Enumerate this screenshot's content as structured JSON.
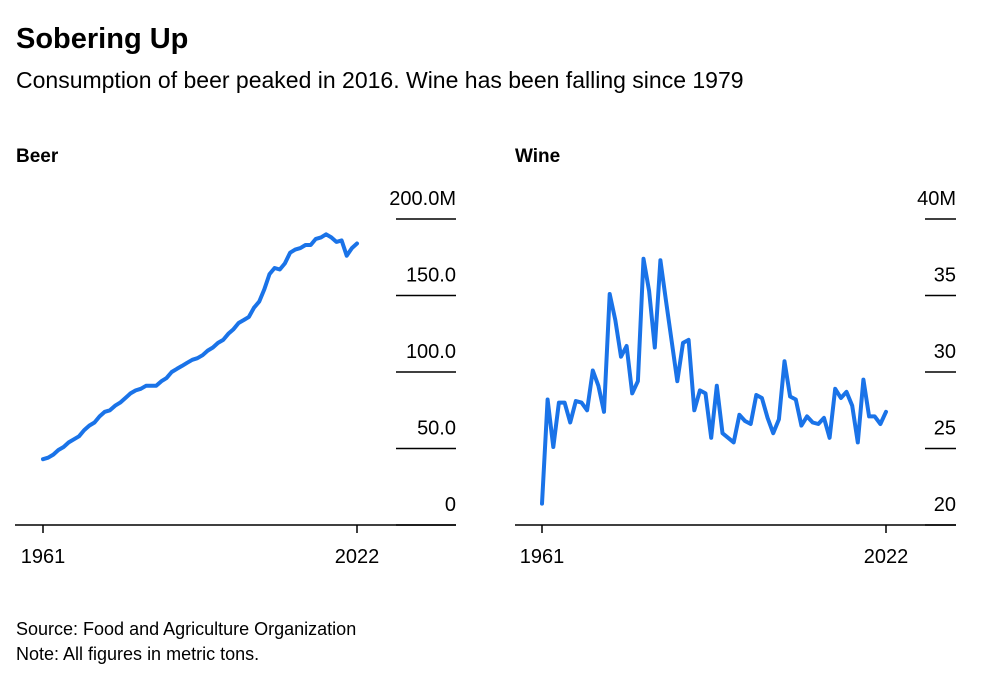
{
  "title": "Sobering Up",
  "subtitle": "Consumption of beer peaked in 2016. Wine has been falling since 1979",
  "chart_data": [
    {
      "type": "line",
      "title": "Beer",
      "color": "#1a73e8",
      "x": [
        1961,
        1962,
        1963,
        1964,
        1965,
        1966,
        1967,
        1968,
        1969,
        1970,
        1971,
        1972,
        1973,
        1974,
        1975,
        1976,
        1977,
        1978,
        1979,
        1980,
        1981,
        1982,
        1983,
        1984,
        1985,
        1986,
        1987,
        1988,
        1989,
        1990,
        1991,
        1992,
        1993,
        1994,
        1995,
        1996,
        1997,
        1998,
        1999,
        2000,
        2001,
        2002,
        2003,
        2004,
        2005,
        2006,
        2007,
        2008,
        2009,
        2010,
        2011,
        2012,
        2013,
        2014,
        2015,
        2016,
        2017,
        2018,
        2019,
        2020,
        2021,
        2022
      ],
      "values": [
        43,
        44,
        46,
        49,
        51,
        54,
        56,
        58,
        62,
        65,
        67,
        71,
        74,
        75,
        78,
        80,
        83,
        86,
        88,
        89,
        91,
        91,
        91,
        94,
        96,
        100,
        102,
        104,
        106,
        108,
        109,
        111,
        114,
        116,
        119,
        121,
        125,
        128,
        132,
        134,
        136,
        142,
        146,
        154,
        164,
        168,
        167,
        171,
        178,
        180,
        181,
        183,
        183,
        187,
        188,
        190,
        188,
        185,
        186,
        176,
        181,
        184
      ],
      "xlim": [
        1961,
        2022
      ],
      "xticks": [
        1961,
        2022
      ],
      "ylim": [
        0,
        200
      ],
      "yticks": [
        0,
        {
          "value": 50,
          "label": "50.0"
        },
        {
          "value": 100,
          "label": "100.0"
        },
        {
          "value": 150,
          "label": "150.0"
        },
        {
          "value": 200,
          "label": "200.0M"
        }
      ]
    },
    {
      "type": "line",
      "title": "Wine",
      "color": "#1a73e8",
      "x": [
        1961,
        1962,
        1963,
        1964,
        1965,
        1966,
        1967,
        1968,
        1969,
        1970,
        1971,
        1972,
        1973,
        1974,
        1975,
        1976,
        1977,
        1978,
        1979,
        1980,
        1981,
        1982,
        1983,
        1984,
        1985,
        1986,
        1987,
        1988,
        1989,
        1990,
        1991,
        1992,
        1993,
        1994,
        1995,
        1996,
        1997,
        1998,
        1999,
        2000,
        2001,
        2002,
        2003,
        2004,
        2005,
        2006,
        2007,
        2008,
        2009,
        2010,
        2011,
        2012,
        2013,
        2014,
        2015,
        2016,
        2017,
        2018,
        2019,
        2020,
        2021,
        2022
      ],
      "values": [
        21.4,
        28.2,
        25.1,
        28,
        28,
        26.7,
        28.1,
        28,
        27.5,
        30.1,
        29.1,
        27.4,
        35.1,
        33.4,
        31,
        31.7,
        28.6,
        29.4,
        37.4,
        35.3,
        31.6,
        37.3,
        34.6,
        32,
        29.4,
        31.9,
        32.1,
        27.5,
        28.8,
        28.6,
        25.7,
        29.1,
        26,
        25.7,
        25.4,
        27.2,
        26.8,
        26.6,
        28.5,
        28.3,
        27,
        26,
        26.9,
        30.7,
        28.4,
        28.2,
        26.5,
        27.1,
        26.7,
        26.6,
        27,
        25.7,
        28.9,
        28.3,
        28.7,
        27.8,
        25.4,
        29.5,
        27.1,
        27.1,
        26.6,
        27.4
      ],
      "xlim": [
        1961,
        2022
      ],
      "xticks": [
        1961,
        2022
      ],
      "ylim": [
        20,
        40
      ],
      "yticks": [
        20,
        25,
        30,
        35,
        {
          "value": 40,
          "label": "40M"
        }
      ]
    }
  ],
  "source": "Source: Food and Agriculture Organization",
  "note": "Note: All figures in metric tons."
}
